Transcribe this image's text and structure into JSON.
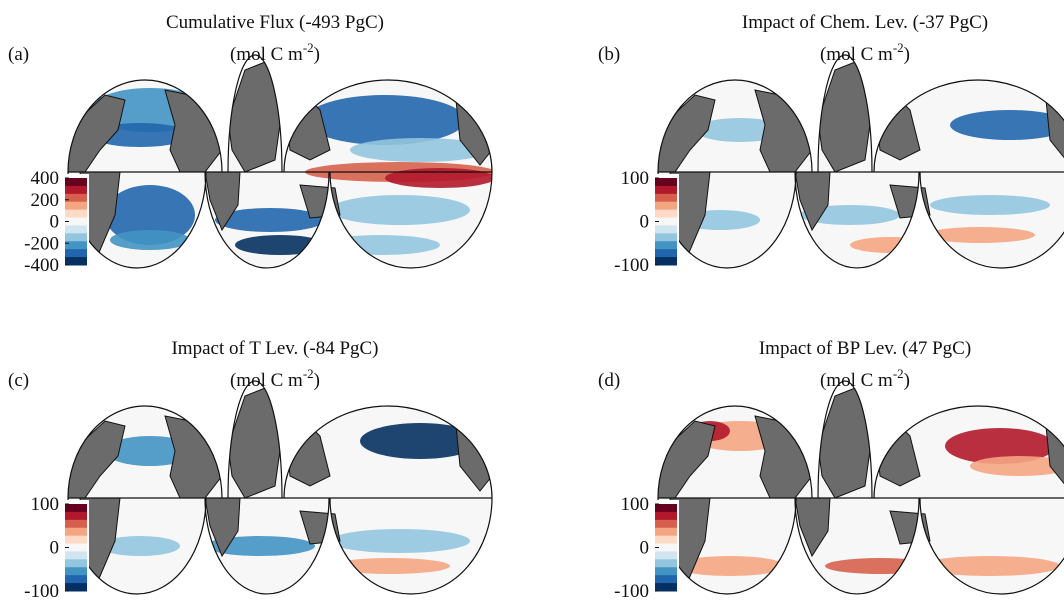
{
  "colormap": [
    "#67001f",
    "#b2182b",
    "#d6604d",
    "#f4a582",
    "#fddbc7",
    "#f7f7f7",
    "#d1e5f0",
    "#92c5de",
    "#4393c3",
    "#2166ac",
    "#053061"
  ],
  "panels": [
    {
      "label": "(a)",
      "title": "Cumulative Flux (-493 PgC)",
      "units": {
        "base": "(mol C m",
        "exponent": "-2",
        "close": ")"
      },
      "clim": [
        -400,
        400
      ],
      "cticks": [
        400,
        200,
        0,
        -200,
        -400
      ]
    },
    {
      "label": "(b)",
      "title": "Impact of Chem. Lev. (-37 PgC)",
      "units": {
        "base": "(mol C m",
        "exponent": "-2",
        "close": ")"
      },
      "clim": [
        -100,
        100
      ],
      "cticks": [
        100,
        0,
        -100
      ]
    },
    {
      "label": "(c)",
      "title": "Impact of T Lev. (-84 PgC)",
      "units": {
        "base": "(mol C m",
        "exponent": "-2",
        "close": ")"
      },
      "clim": [
        -100,
        100
      ],
      "cticks": [
        100,
        0,
        -100
      ]
    },
    {
      "label": "(d)",
      "title": "Impact of BP Lev. (47 PgC)",
      "units": {
        "base": "(mol C m",
        "exponent": "-2",
        "close": ")"
      },
      "clim": [
        -100,
        100
      ],
      "cticks": [
        100,
        0,
        -100
      ]
    }
  ]
}
